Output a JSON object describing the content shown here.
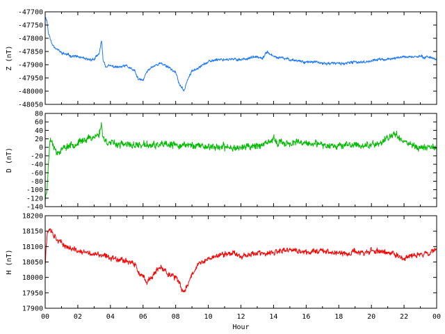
{
  "chart_data": [
    {
      "type": "line",
      "ylabel": "Z (nT)",
      "ylim": [
        -48050,
        -47700
      ],
      "yticks": [
        -47700,
        -47750,
        -47800,
        -47850,
        -47900,
        -47950,
        -48000,
        -48050
      ],
      "xlim": [
        0,
        24
      ],
      "color": "#1e78ff",
      "series": [
        {
          "x": [
            0,
            0.1,
            0.2,
            0.4,
            0.7,
            1.0,
            1.5,
            2.0,
            2.5,
            3.0,
            3.3,
            3.45,
            3.55,
            3.7,
            4.0,
            4.5,
            5.0,
            5.5,
            5.7,
            6.0,
            6.2,
            6.5,
            7.0,
            7.3,
            7.6,
            8.0,
            8.2,
            8.5,
            8.7,
            9.0,
            9.5,
            10.0,
            10.5,
            11.0,
            11.5,
            12.0,
            12.5,
            13.0,
            13.3,
            13.6,
            14.0,
            14.5,
            15.0,
            15.5,
            16.0,
            16.5,
            17.0,
            17.5,
            18.0,
            18.5,
            19.0,
            19.5,
            20.0,
            20.5,
            21.0,
            21.5,
            22.0,
            22.5,
            23.0,
            23.5,
            24.0
          ],
          "values": [
            -47720,
            -47730,
            -47780,
            -47820,
            -47840,
            -47855,
            -47865,
            -47870,
            -47880,
            -47880,
            -47860,
            -47810,
            -47880,
            -47905,
            -47905,
            -47910,
            -47905,
            -47925,
            -47955,
            -47960,
            -47930,
            -47910,
            -47895,
            -47900,
            -47910,
            -47930,
            -47970,
            -48000,
            -47960,
            -47925,
            -47905,
            -47890,
            -47880,
            -47880,
            -47880,
            -47880,
            -47875,
            -47870,
            -47880,
            -47850,
            -47870,
            -47875,
            -47880,
            -47885,
            -47890,
            -47890,
            -47895,
            -47895,
            -47895,
            -47895,
            -47890,
            -47890,
            -47885,
            -47880,
            -47880,
            -47875,
            -47870,
            -47870,
            -47870,
            -47870,
            -47880
          ]
        }
      ]
    },
    {
      "type": "line",
      "ylabel": "D (nT)",
      "ylim": [
        -140,
        80
      ],
      "yticks": [
        80,
        60,
        40,
        20,
        0,
        -20,
        -40,
        -60,
        -80,
        -100,
        -120,
        -140
      ],
      "xlim": [
        0,
        24
      ],
      "color": "#00bb00",
      "series": [
        {
          "x": [
            0,
            0.1,
            0.2,
            0.3,
            0.5,
            0.7,
            1.0,
            1.5,
            2.0,
            2.5,
            3.0,
            3.3,
            3.45,
            3.55,
            3.7,
            4.0,
            5.0,
            6.0,
            7.0,
            8.0,
            9.0,
            10.0,
            11.0,
            12.0,
            13.0,
            13.5,
            14.0,
            14.3,
            15.0,
            16.0,
            17.0,
            18.0,
            19.0,
            20.0,
            20.5,
            21.0,
            21.3,
            21.5,
            21.8,
            22.0,
            22.5,
            23.0,
            23.5,
            24.0
          ],
          "values": [
            -125,
            -100,
            -40,
            20,
            10,
            -15,
            -5,
            5,
            10,
            20,
            25,
            30,
            55,
            25,
            15,
            10,
            5,
            5,
            5,
            5,
            5,
            2,
            0,
            0,
            5,
            5,
            20,
            10,
            10,
            10,
            5,
            5,
            5,
            5,
            10,
            20,
            30,
            35,
            20,
            15,
            5,
            0,
            0,
            0
          ]
        }
      ]
    },
    {
      "type": "line",
      "ylabel": "H (nT)",
      "ylim": [
        17900,
        18200
      ],
      "yticks": [
        18200,
        18150,
        18100,
        18050,
        18000,
        17950,
        17900
      ],
      "xlim": [
        0,
        24
      ],
      "xticks": [
        "00",
        "02",
        "04",
        "06",
        "08",
        "10",
        "12",
        "14",
        "16",
        "18",
        "20",
        "22",
        "00"
      ],
      "xlabel": "Hour",
      "color": "#ff0000",
      "series": [
        {
          "x": [
            0,
            0.05,
            0.15,
            0.3,
            0.5,
            0.8,
            1.0,
            1.5,
            2.0,
            2.5,
            3.0,
            3.5,
            4.0,
            4.5,
            5.0,
            5.5,
            5.8,
            6.0,
            6.2,
            6.5,
            7.0,
            7.3,
            7.6,
            8.0,
            8.3,
            8.5,
            8.7,
            9.0,
            9.3,
            9.7,
            10.0,
            10.5,
            11.0,
            11.5,
            12.0,
            12.5,
            13.0,
            13.5,
            14.0,
            14.5,
            15.0,
            15.5,
            16.0,
            16.5,
            17.0,
            17.5,
            18.0,
            18.5,
            19.0,
            19.5,
            20.0,
            20.5,
            21.0,
            21.5,
            22.0,
            22.5,
            23.0,
            23.5,
            24.0
          ],
          "values": [
            18040,
            18100,
            18150,
            18160,
            18140,
            18120,
            18110,
            18095,
            18085,
            18080,
            18075,
            18070,
            18065,
            18060,
            18055,
            18040,
            18010,
            18000,
            17985,
            18000,
            18030,
            18025,
            18010,
            18000,
            17970,
            17950,
            17975,
            18010,
            18040,
            18050,
            18060,
            18070,
            18075,
            18080,
            18070,
            18075,
            18080,
            18075,
            18080,
            18085,
            18090,
            18085,
            18080,
            18085,
            18090,
            18080,
            18080,
            18075,
            18085,
            18080,
            18085,
            18085,
            18080,
            18075,
            18060,
            18070,
            18075,
            18080,
            18090
          ]
        }
      ]
    }
  ]
}
